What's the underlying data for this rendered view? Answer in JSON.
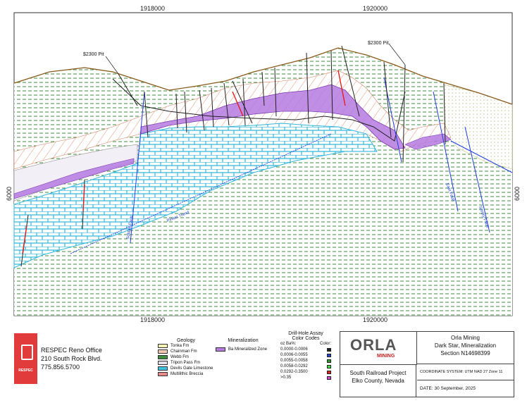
{
  "axes": {
    "x_ticks": [
      "1918000",
      "1920000"
    ],
    "y_ticks": [
      "6000"
    ]
  },
  "annotations": {
    "pit_left": "$2300 Pit",
    "pit_right": "$2300 Pit",
    "fault_labels": [
      "Pinion Trend",
      "Soldier Fault",
      "East Fault",
      "Sentry Fault"
    ]
  },
  "company": {
    "office": "RESPEC Reno Office",
    "address": "210 South Rock Blvd.",
    "phone": "775.856.5700",
    "logo_text": "RESPEC"
  },
  "geology": {
    "title": "Geology",
    "items": [
      {
        "label": "Tonka Fm",
        "color": "#f4f1b4"
      },
      {
        "label": "Chainman Fm",
        "color": "#f3c9b5"
      },
      {
        "label": "Webb Fm",
        "color": "#3f8c3f"
      },
      {
        "label": "Tripon Pass Fm",
        "color": "#e0dcea"
      },
      {
        "label": "Devils Gate Limestone",
        "color": "#3fc2e0"
      },
      {
        "label": "Multilithic Breccia",
        "color": "#e88a8a"
      }
    ]
  },
  "mineralization": {
    "title": "Mineralization",
    "items": [
      {
        "label": "Ba Mineralized Zone",
        "color": "#b57ae0"
      }
    ]
  },
  "assay": {
    "title_line1": "Drill-Hole Assay",
    "title_line2": "Color Codes",
    "col1": "oz Ba%:",
    "col2": "Color:",
    "rows": [
      {
        "range": "0.0000-0.0006",
        "color": "#222222"
      },
      {
        "range": "0.0006-0.0055",
        "color": "#2040e0"
      },
      {
        "range": "0.0055-0.0058",
        "color": "#2a9a2a"
      },
      {
        "range": "0.0058-0.0292",
        "color": "#40e040"
      },
      {
        "range": "0.0292-0.3500",
        "color": "#e02020"
      },
      {
        "range": ">0.35",
        "color": "#e040e0"
      }
    ]
  },
  "title_block": {
    "logo": "ORLA",
    "logo_sub": "MINING",
    "client": "Orla Mining",
    "section_line1": "Dark Star, Mineralization",
    "section_line2": "Section N14698399",
    "project_line1": "South Railroad Project",
    "project_line2": "Elko County, Nevada",
    "coord": "COORDINATE SYSTEM: UTM NAD 27 Zone 11",
    "date": "DATE: 30 September, 2025"
  }
}
